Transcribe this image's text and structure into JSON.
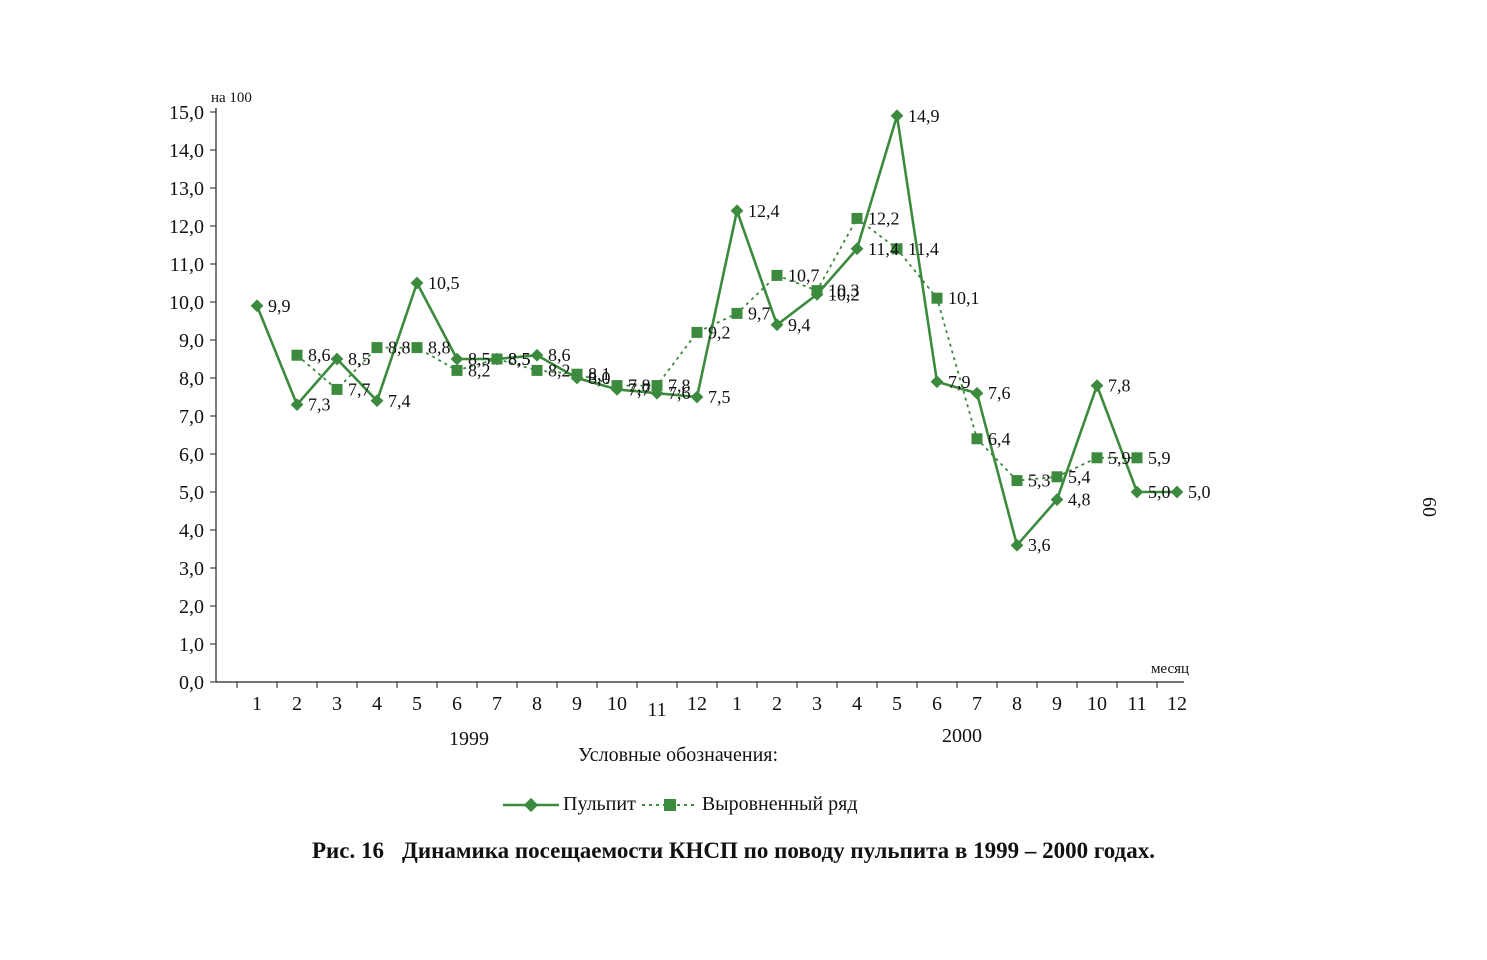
{
  "chart_data": {
    "type": "line",
    "ylabel": "на 100",
    "xlabel": "месяц",
    "ylim": [
      0,
      15
    ],
    "yticks": [
      "0,0",
      "1,0",
      "2,0",
      "3,0",
      "4,0",
      "5,0",
      "6,0",
      "7,0",
      "8,0",
      "9,0",
      "10,0",
      "11,0",
      "12,0",
      "13,0",
      "14,0",
      "15,0"
    ],
    "categories": [
      "1",
      "2",
      "3",
      "4",
      "5",
      "6",
      "7",
      "8",
      "9",
      "10",
      "11",
      "12",
      "1",
      "2",
      "3",
      "4",
      "5",
      "6",
      "7",
      "8",
      "9",
      "10",
      "11",
      "12"
    ],
    "year_labels": [
      "1999",
      "2000"
    ],
    "legend_title": "Условные обозначения:",
    "legend_position": "bottom",
    "grid": false,
    "series": [
      {
        "name": "Пульпит",
        "style": "solid",
        "marker": "diamond",
        "color": "#3c8a3e",
        "values": [
          9.9,
          7.3,
          8.5,
          7.4,
          10.5,
          8.5,
          8.5,
          8.6,
          8.0,
          7.7,
          7.6,
          7.5,
          12.4,
          9.4,
          10.2,
          11.4,
          14.9,
          7.9,
          7.6,
          3.6,
          4.8,
          7.8,
          5.0,
          5.0
        ],
        "labels": [
          "9,9",
          "7,3",
          "8,5",
          "7,4",
          "10,5",
          "8,5",
          "8,5",
          "8,6",
          "8,0",
          "7,7",
          "7,6",
          "7,5",
          "12,4",
          "9,4",
          "10,2",
          "11,4",
          "14,9",
          "7,9",
          "7,6",
          "3,6",
          "4,8",
          "7,8",
          "5,0",
          "5,0"
        ]
      },
      {
        "name": "Выровненный ряд",
        "style": "dotted",
        "marker": "square",
        "color": "#3c8a3e",
        "values": [
          null,
          8.6,
          7.7,
          8.8,
          8.8,
          8.2,
          8.5,
          8.2,
          8.1,
          7.8,
          7.8,
          9.2,
          9.7,
          10.7,
          10.3,
          12.2,
          11.4,
          10.1,
          6.4,
          5.3,
          5.4,
          5.9,
          5.9,
          null
        ],
        "labels": [
          null,
          "8,6",
          "7,7",
          "8,8",
          "8,8",
          "8,2",
          "8,5",
          "8,2",
          "8,1",
          "7,8",
          "7,8",
          "9,2",
          "9,7",
          "10,7",
          "10,3",
          "12,2",
          "11,4",
          "10,1",
          "6,4",
          "5,3",
          "5,4",
          "5,9",
          "5,9",
          null
        ]
      }
    ]
  },
  "figure_caption": {
    "number": "Рис. 16",
    "text": "Динамика посещаемости КНСП по поводу пульпита в 1999 – 2000 годах."
  },
  "page_number": "60"
}
